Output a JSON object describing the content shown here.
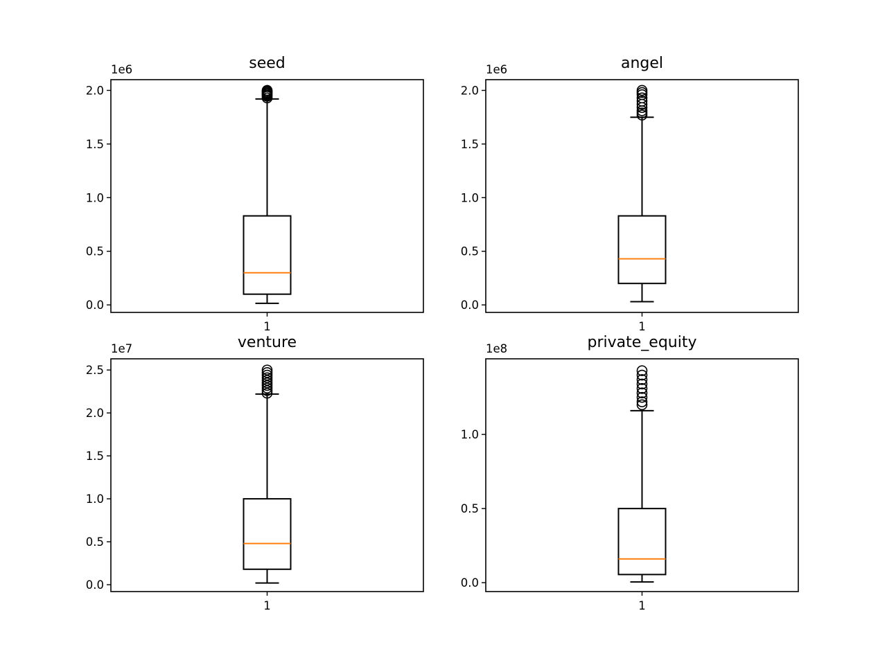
{
  "chart_data": [
    {
      "type": "boxplot",
      "title": "seed",
      "offset_label": "1e6",
      "ylim": [
        -0.07,
        2.1
      ],
      "yticks": [
        0.0,
        0.5,
        1.0,
        1.5,
        2.0
      ],
      "ytick_labels": [
        "0.0",
        "0.5",
        "1.0",
        "1.5",
        "2.0"
      ],
      "xtick_labels": [
        "1"
      ],
      "box": {
        "whislo": 0.015,
        "q1": 0.1,
        "med": 0.3,
        "q3": 0.83,
        "whishi": 1.92
      },
      "fliers": [
        1.93,
        1.945,
        1.955,
        1.965,
        1.975,
        1.985,
        1.995,
        2.0
      ]
    },
    {
      "type": "boxplot",
      "title": "angel",
      "offset_label": "1e6",
      "ylim": [
        -0.07,
        2.1
      ],
      "yticks": [
        0.0,
        0.5,
        1.0,
        1.5,
        2.0
      ],
      "ytick_labels": [
        "0.0",
        "0.5",
        "1.0",
        "1.5",
        "2.0"
      ],
      "xtick_labels": [
        "1"
      ],
      "box": {
        "whislo": 0.03,
        "q1": 0.2,
        "med": 0.43,
        "q3": 0.83,
        "whishi": 1.75
      },
      "fliers": [
        1.77,
        1.79,
        1.81,
        1.84,
        1.87,
        1.9,
        1.93,
        1.96,
        1.98,
        2.0
      ]
    },
    {
      "type": "boxplot",
      "title": "venture",
      "offset_label": "1e7",
      "ylim": [
        -0.08,
        2.63
      ],
      "yticks": [
        0.0,
        0.5,
        1.0,
        1.5,
        2.0,
        2.5
      ],
      "ytick_labels": [
        "0.0",
        "0.5",
        "1.0",
        "1.5",
        "2.0",
        "2.5"
      ],
      "xtick_labels": [
        "1"
      ],
      "box": {
        "whislo": 0.02,
        "q1": 0.18,
        "med": 0.48,
        "q3": 1.0,
        "whishi": 2.22
      },
      "fliers": [
        2.23,
        2.26,
        2.29,
        2.32,
        2.35,
        2.38,
        2.41,
        2.44,
        2.47,
        2.5
      ]
    },
    {
      "type": "boxplot",
      "title": "private_equity",
      "offset_label": "1e8",
      "ylim": [
        -0.06,
        1.51
      ],
      "yticks": [
        0.0,
        0.5,
        1.0
      ],
      "ytick_labels": [
        "0.0",
        "0.5",
        "1.0"
      ],
      "xtick_labels": [
        "1"
      ],
      "box": {
        "whislo": 0.005,
        "q1": 0.055,
        "med": 0.16,
        "q3": 0.5,
        "whishi": 1.16
      },
      "fliers": [
        1.2,
        1.22,
        1.25,
        1.28,
        1.31,
        1.34,
        1.37,
        1.4,
        1.43
      ]
    }
  ],
  "style": {
    "box_color": "#000000",
    "median_color": "#ff7f0e",
    "background": "#ffffff"
  }
}
